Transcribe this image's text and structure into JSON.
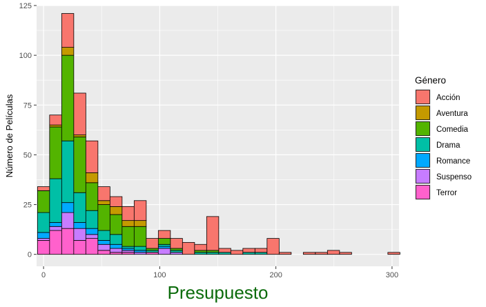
{
  "chart_data": {
    "type": "bar",
    "stacked": true,
    "title": "",
    "xlabel": "Presupuesto",
    "ylabel": "Número de Películas",
    "xlim": [
      -6,
      306
    ],
    "ylim": [
      -6,
      125
    ],
    "x_ticks": [
      0,
      100,
      200,
      300
    ],
    "y_ticks": [
      0,
      25,
      50,
      75,
      100,
      125
    ],
    "bin_width": 10.4,
    "grid": true,
    "legend_position": "right",
    "legend_title": "Género",
    "colors": {
      "xlabel": "#0b6b0b",
      "panel": "#ebebeb",
      "grid": "#ffffff",
      "bar_outline": "#000000"
    },
    "bin_centers": [
      0,
      10.4,
      20.8,
      31.2,
      41.6,
      52,
      62.4,
      72.8,
      83.2,
      93.6,
      104,
      114.4,
      124.8,
      135.2,
      145.6,
      156,
      166.4,
      176.8,
      187.2,
      197.6,
      208,
      218.4,
      228.8,
      239.2,
      249.6,
      260,
      270.4,
      280.8,
      291.2,
      301.6
    ],
    "series": [
      {
        "name": "Terror",
        "color": "#FF61CC",
        "values": [
          7,
          12,
          13,
          7,
          8,
          2,
          1,
          1,
          0,
          1,
          0,
          0,
          0,
          0,
          0,
          0,
          0,
          0,
          0,
          0,
          0,
          0,
          0,
          0,
          0,
          0,
          0,
          0,
          0,
          0
        ]
      },
      {
        "name": "Suspenso",
        "color": "#C77CFF",
        "values": [
          1,
          2,
          8,
          6,
          2,
          3,
          2,
          1,
          1,
          0,
          3,
          1,
          0,
          0,
          0,
          0,
          0,
          0,
          0,
          0,
          0,
          0,
          0,
          0,
          0,
          0,
          0,
          0,
          0,
          0
        ]
      },
      {
        "name": "Romance",
        "color": "#00A9FF",
        "values": [
          3,
          2,
          5,
          3,
          3,
          2,
          2,
          1,
          1,
          0,
          1,
          0,
          0,
          0,
          0,
          0,
          0,
          0,
          0,
          0,
          0,
          0,
          0,
          0,
          0,
          0,
          0,
          0,
          0,
          0
        ]
      },
      {
        "name": "Drama",
        "color": "#00BFA6",
        "values": [
          10,
          22,
          31,
          15,
          9,
          5,
          5,
          1,
          2,
          1,
          1,
          1,
          0,
          1,
          1,
          1,
          0,
          1,
          1,
          0,
          0,
          0,
          0,
          0,
          0,
          0,
          0,
          0,
          0,
          0
        ]
      },
      {
        "name": "Comedia",
        "color": "#53B400",
        "values": [
          11,
          26,
          43,
          28,
          14,
          13,
          10,
          10,
          10,
          1,
          3,
          1,
          0,
          1,
          1,
          0,
          0,
          0,
          0,
          0,
          0,
          0,
          0,
          0,
          0,
          0,
          0,
          0,
          0,
          0
        ]
      },
      {
        "name": "Aventura",
        "color": "#C49A00",
        "values": [
          0,
          1,
          4,
          1,
          5,
          2,
          4,
          3,
          3,
          0,
          0,
          0,
          0,
          0,
          0,
          0,
          0,
          0,
          0,
          0,
          0,
          0,
          0,
          0,
          0,
          0,
          0,
          0,
          0,
          0
        ]
      },
      {
        "name": "Acción",
        "color": "#F8766D",
        "values": [
          2,
          5,
          17,
          21,
          16,
          7,
          5,
          7,
          10,
          5,
          4,
          5,
          6,
          3,
          17,
          2,
          2,
          2,
          2,
          8,
          1,
          0,
          1,
          1,
          2,
          1,
          0,
          0,
          0,
          1
        ]
      }
    ],
    "legend_entries": [
      "Acción",
      "Aventura",
      "Comedia",
      "Drama",
      "Romance",
      "Suspenso",
      "Terror"
    ]
  }
}
